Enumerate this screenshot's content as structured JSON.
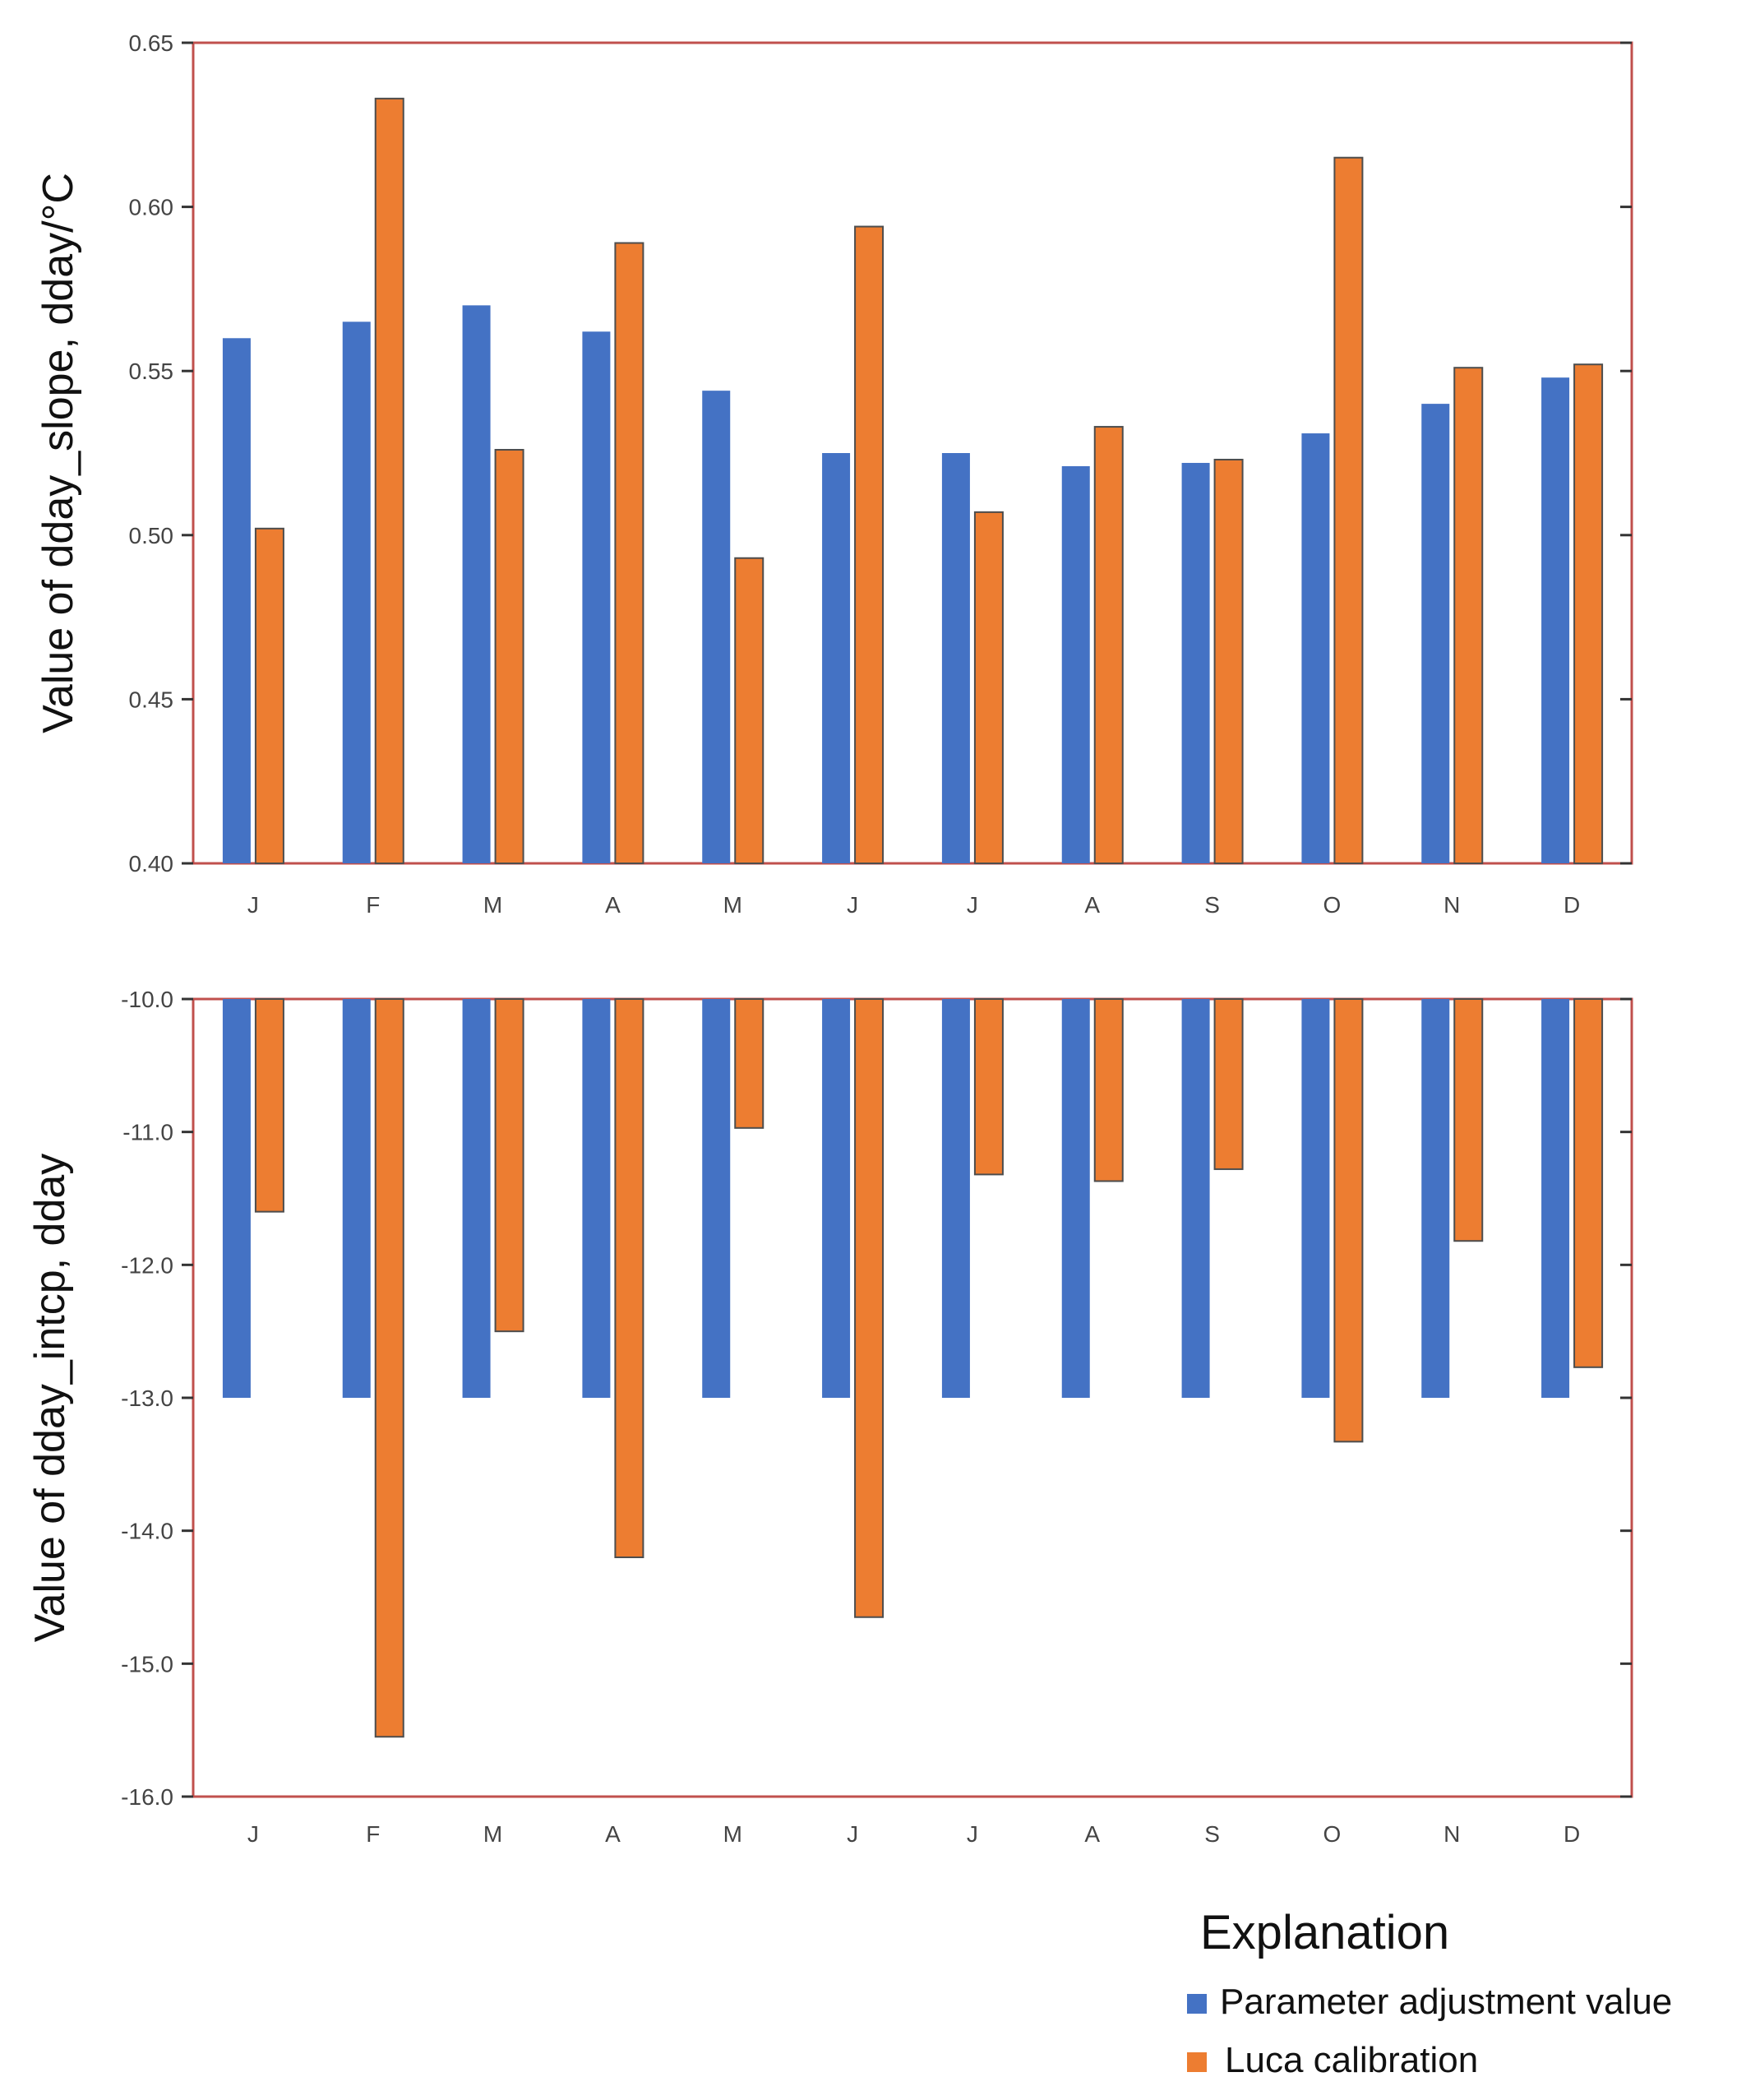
{
  "legend": {
    "title": "Explanation",
    "items": [
      {
        "label": "Parameter adjustment value",
        "color": "#4472C4"
      },
      {
        "label": "Luca calibration",
        "color": "#ED7D31"
      }
    ]
  },
  "chart_data": [
    {
      "type": "bar",
      "categories": [
        "J",
        "F",
        "M",
        "A",
        "M",
        "J",
        "J",
        "A",
        "S",
        "O",
        "N",
        "D"
      ],
      "ylabel": "Value of dday_slope, dday/°C",
      "ylim": [
        0.4,
        0.65
      ],
      "yticks": [
        0.4,
        0.45,
        0.5,
        0.55,
        0.6,
        0.65
      ],
      "ytick_labels": [
        "0.40",
        "0.45",
        "0.50",
        "0.55",
        "0.60",
        "0.65"
      ],
      "baseline": 0.4,
      "series": [
        {
          "name": "Parameter adjustment value",
          "color": "#4472C4",
          "values": [
            0.56,
            0.565,
            0.57,
            0.562,
            0.544,
            0.525,
            0.525,
            0.521,
            0.522,
            0.531,
            0.54,
            0.548
          ]
        },
        {
          "name": "Luca calibration",
          "color": "#ED7D31",
          "values": [
            0.502,
            0.633,
            0.526,
            0.589,
            0.493,
            0.594,
            0.507,
            0.533,
            0.523,
            0.615,
            0.551,
            0.552
          ]
        }
      ]
    },
    {
      "type": "bar",
      "categories": [
        "J",
        "F",
        "M",
        "A",
        "M",
        "J",
        "J",
        "A",
        "S",
        "O",
        "N",
        "D"
      ],
      "ylabel": "Value of dday_intcp, dday",
      "ylim": [
        -16.0,
        -10.0
      ],
      "yticks": [
        -10.0,
        -11.0,
        -12.0,
        -13.0,
        -14.0,
        -15.0,
        -16.0
      ],
      "ytick_labels": [
        "-10.0",
        "-11.0",
        "-12.0",
        "-13.0",
        "-14.0",
        "-15.0",
        "-16.0"
      ],
      "baseline": -10.0,
      "series": [
        {
          "name": "Parameter adjustment value",
          "color": "#4472C4",
          "values": [
            -13.0,
            -13.0,
            -13.0,
            -13.0,
            -13.0,
            -13.0,
            -13.0,
            -13.0,
            -13.0,
            -13.0,
            -13.0,
            -13.0
          ]
        },
        {
          "name": "Luca calibration",
          "color": "#ED7D31",
          "values": [
            -11.6,
            -15.55,
            -12.5,
            -14.2,
            -10.97,
            -14.65,
            -11.32,
            -11.37,
            -11.28,
            -13.33,
            -11.82,
            -12.77
          ]
        }
      ]
    }
  ]
}
